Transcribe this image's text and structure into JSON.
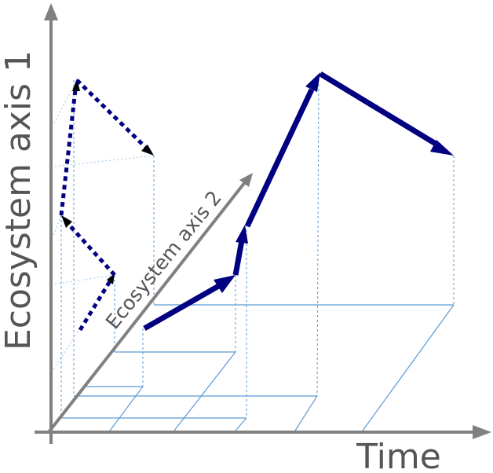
{
  "diagram": {
    "y_axis_label": "Ecosystem axis 1",
    "z_axis_label": "Ecosystem axis 2",
    "x_axis_label": "Time",
    "colors": {
      "axis": "#808080",
      "trajectory": "#000080",
      "grid": "#5b9bd5",
      "arrowhead_projection": "#000000"
    }
  }
}
